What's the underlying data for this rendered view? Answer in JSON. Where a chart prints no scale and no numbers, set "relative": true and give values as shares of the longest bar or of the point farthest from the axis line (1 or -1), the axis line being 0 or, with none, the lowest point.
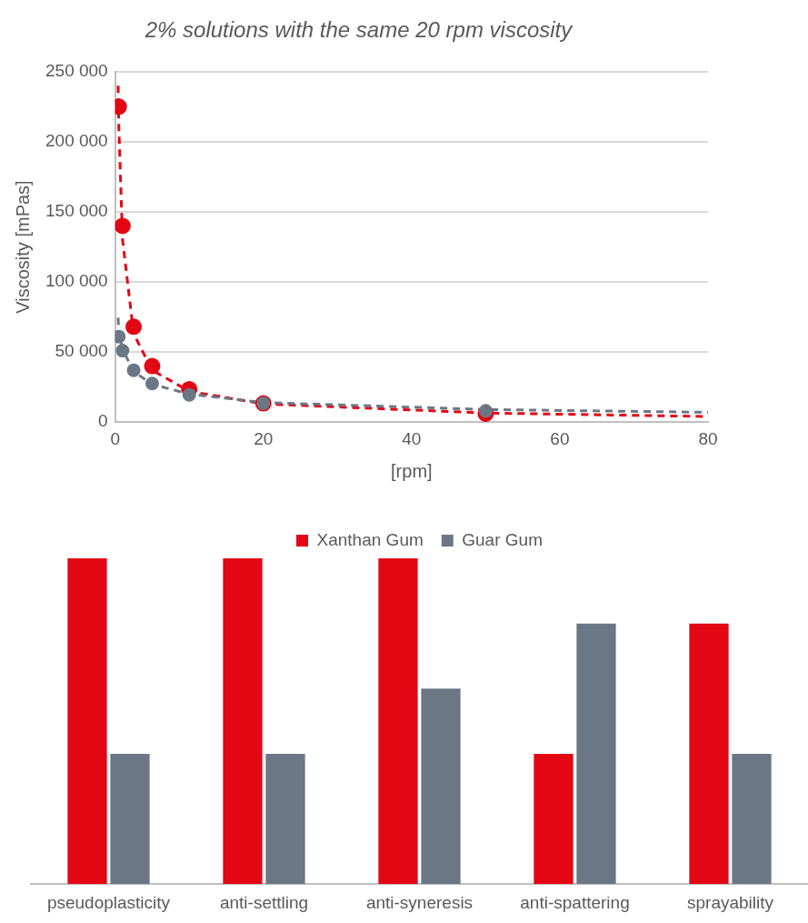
{
  "chart_data": [
    {
      "type": "scatter",
      "title": "2% solutions with the same 20 rpm viscosity",
      "xlabel": "[rpm]",
      "ylabel": "Viscosity [mPas]",
      "xlim": [
        0,
        80
      ],
      "xticks": [
        0,
        20,
        40,
        60,
        80
      ],
      "ylim": [
        0,
        250000
      ],
      "yticks": [
        {
          "value": 0,
          "label": "0"
        },
        {
          "value": 50000,
          "label": "50 000"
        },
        {
          "value": 100000,
          "label": "100 000"
        },
        {
          "value": 150000,
          "label": "150 000"
        },
        {
          "value": 200000,
          "label": "200 000"
        },
        {
          "value": 250000,
          "label": "250 000"
        }
      ],
      "grid": "y",
      "legend": false,
      "marker": "circle",
      "series": [
        {
          "type": "line",
          "marker": "none",
          "line_style": "dashed",
          "color": "#e30613",
          "x": [
            0.4,
            0.5,
            1,
            2.5,
            5,
            10,
            20,
            50,
            80
          ],
          "values": [
            240000,
            210000,
            130000,
            63000,
            37000,
            22000,
            13000,
            6500,
            4000
          ]
        },
        {
          "type": "line",
          "marker": "none",
          "line_style": "dashed",
          "color": "#6b7785",
          "x": [
            0.4,
            0.5,
            1,
            2.5,
            5,
            10,
            20,
            50,
            80
          ],
          "values": [
            74500,
            65000,
            52000,
            36000,
            27000,
            20000,
            14000,
            9000,
            7000
          ]
        },
        {
          "color": "#e30613",
          "x": [
            0.5,
            1,
            2.5,
            5,
            10,
            20,
            50
          ],
          "values": [
            225000,
            140000,
            68000,
            40000,
            23500,
            13400,
            6000
          ]
        },
        {
          "color": "#6b7785",
          "x": [
            0.5,
            1,
            2.5,
            5,
            10,
            20,
            50
          ],
          "values": [
            61000,
            51000,
            37000,
            27500,
            19500,
            13500,
            8000
          ]
        }
      ]
    },
    {
      "type": "bar",
      "relative": true,
      "legend": "top",
      "grid": false,
      "categories": [
        "pseudoplasticity",
        "anti-settling",
        "anti-syneresis",
        "anti-spattering",
        "sprayability"
      ],
      "series": [
        {
          "name": "Xanthan Gum",
          "color": "#e30613",
          "values": [
            1,
            1,
            1,
            0.4,
            0.8
          ]
        },
        {
          "name": "Guar Gum",
          "color": "#6b7785",
          "values": [
            0.4,
            0.4,
            0.6,
            0.8,
            0.4
          ]
        }
      ]
    }
  ]
}
